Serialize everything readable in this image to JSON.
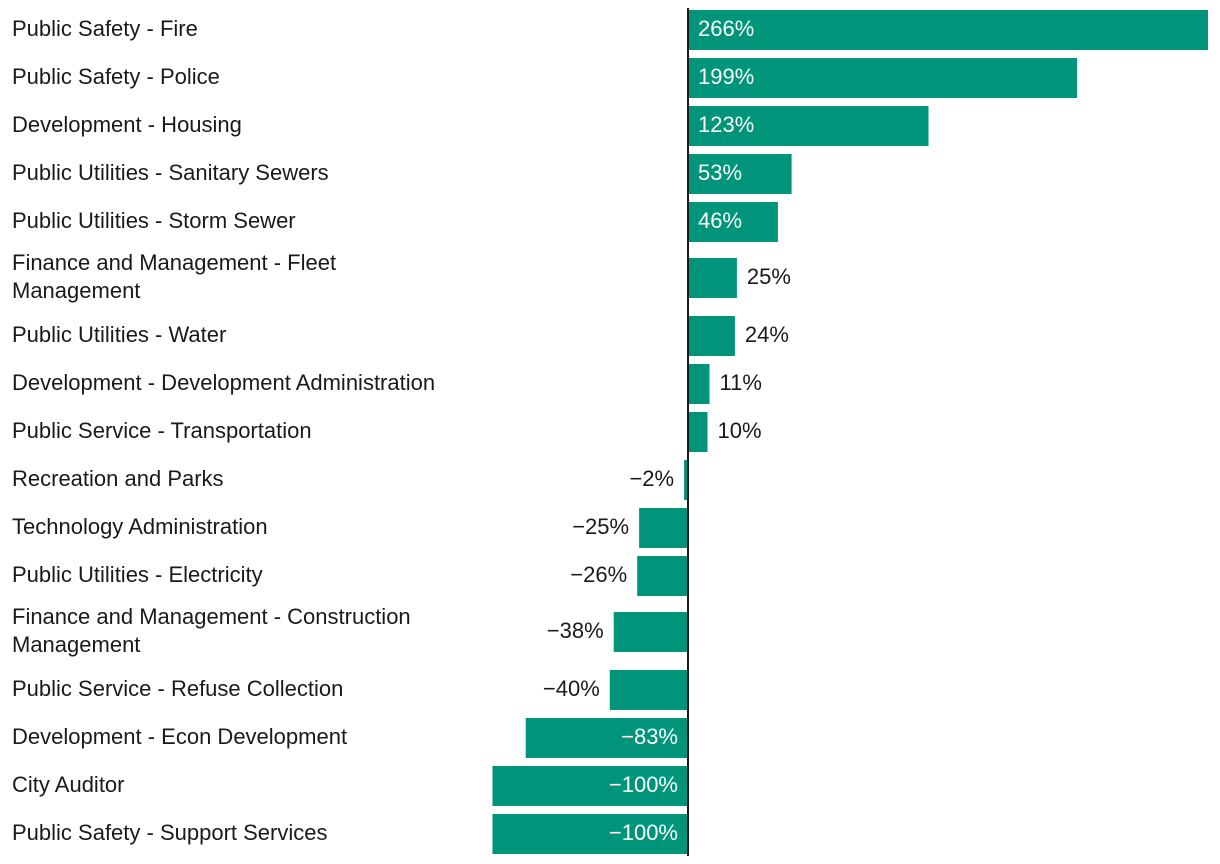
{
  "colors": {
    "bar": "#00957A",
    "text": "#1a1a1a",
    "inside_text": "#ffffff",
    "axis": "#1a1a1a"
  },
  "chart_data": {
    "type": "bar",
    "orientation": "horizontal",
    "title": "",
    "xlabel": "",
    "ylabel": "",
    "xlim": [
      -100,
      266
    ],
    "grid": false,
    "legend": "none",
    "categories": [
      {
        "lines": [
          "Public Safety - Fire"
        ]
      },
      {
        "lines": [
          "Public Safety - Police"
        ]
      },
      {
        "lines": [
          "Development - Housing"
        ]
      },
      {
        "lines": [
          "Public Utilities - Sanitary Sewers"
        ]
      },
      {
        "lines": [
          "Public Utilities - Storm Sewer"
        ]
      },
      {
        "lines": [
          "Finance and Management - Fleet",
          "Management"
        ]
      },
      {
        "lines": [
          "Public Utilities - Water"
        ]
      },
      {
        "lines": [
          "Development - Development Administration"
        ]
      },
      {
        "lines": [
          "Public Service - Transportation"
        ]
      },
      {
        "lines": [
          "Recreation and Parks"
        ]
      },
      {
        "lines": [
          "Technology Administration"
        ]
      },
      {
        "lines": [
          "Public Utilities - Electricity"
        ]
      },
      {
        "lines": [
          "Finance and Management - Construction",
          "Management"
        ]
      },
      {
        "lines": [
          "Public Service - Refuse Collection"
        ]
      },
      {
        "lines": [
          "Development - Econ Development"
        ]
      },
      {
        "lines": [
          "City Auditor"
        ]
      },
      {
        "lines": [
          "Public Safety - Support Services"
        ]
      }
    ],
    "values": [
      266,
      199,
      123,
      53,
      46,
      25,
      24,
      11,
      10,
      -2,
      -25,
      -26,
      -38,
      -40,
      -83,
      -100,
      -100
    ],
    "value_labels": [
      "266%",
      "199%",
      "123%",
      "53%",
      "46%",
      "25%",
      "24%",
      "11%",
      "10%",
      "−2%",
      "−25%",
      "−26%",
      "−38%",
      "−40%",
      "−83%",
      "−100%",
      "−100%"
    ]
  }
}
